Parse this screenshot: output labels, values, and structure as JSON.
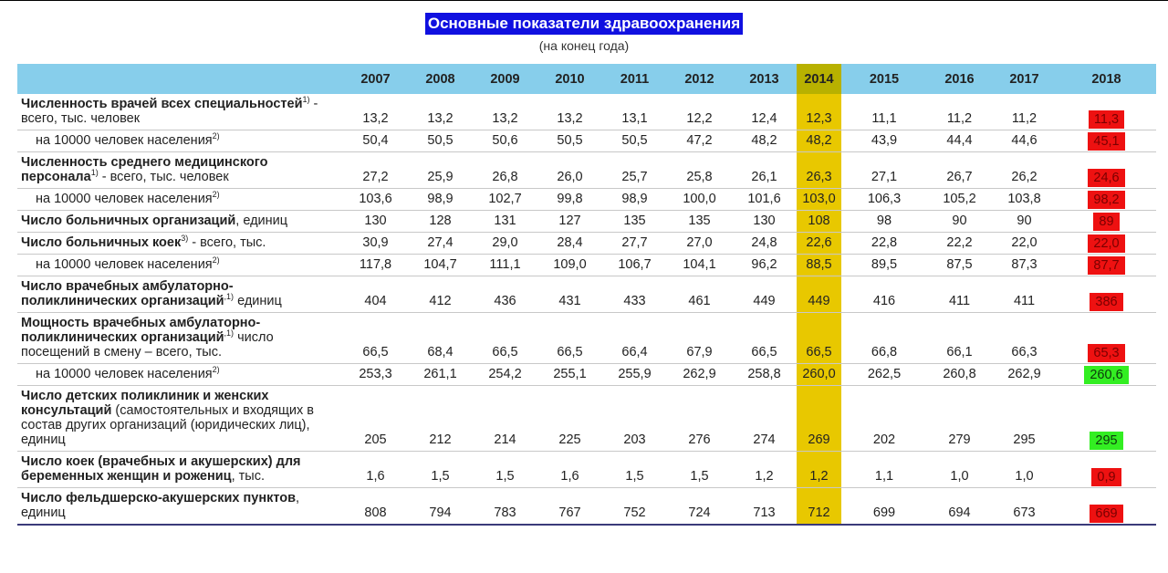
{
  "title": "Основные показатели здравоохранения",
  "subtitle": "(на конец года)",
  "years": [
    "2007",
    "2008",
    "2009",
    "2010",
    "2011",
    "2012",
    "2013",
    "2014",
    "2015",
    "2016",
    "2017",
    "2018"
  ],
  "highlight_year": "2014",
  "colors": {
    "header_bg": "#87ceeb",
    "highlight": "#e8c800",
    "badge_red": "#ee1111",
    "badge_green": "#33ee22",
    "title_bg": "#1010e0"
  },
  "rows": [
    {
      "bold": "Численность врачей всех специальностей",
      "sup": "1)",
      "rest": " - всего, тыс. человек",
      "sub": false,
      "values": [
        "13,2",
        "13,2",
        "13,2",
        "13,2",
        "13,1",
        "12,2",
        "12,4",
        "12,3",
        "11,1",
        "11,2",
        "11,2",
        "11,3"
      ],
      "badge": "red"
    },
    {
      "bold": "",
      "sup": "",
      "rest": "на 10000 человек населения",
      "sup_after": "2)",
      "sub": true,
      "values": [
        "50,4",
        "50,5",
        "50,6",
        "50,5",
        "50,5",
        "47,2",
        "48,2",
        "48,2",
        "43,9",
        "44,4",
        "44,6",
        "45,1"
      ],
      "badge": "red"
    },
    {
      "bold": "Численность среднего медицинского персонала",
      "sup": "1)",
      "rest": " - всего, тыс. человек",
      "sub": false,
      "values": [
        "27,2",
        "25,9",
        "26,8",
        "26,0",
        "25,7",
        "25,8",
        "26,1",
        "26,3",
        "27,1",
        "26,7",
        "26,2",
        "24,6"
      ],
      "badge": "red"
    },
    {
      "bold": "",
      "sup": "",
      "rest": "на 10000 человек населения",
      "sup_after": "2)",
      "sub": true,
      "values": [
        "103,6",
        "98,9",
        "102,7",
        "99,8",
        "98,9",
        "100,0",
        "101,6",
        "103,0",
        "106,3",
        "105,2",
        "103,8",
        "98,2"
      ],
      "badge": "red"
    },
    {
      "bold": "Число больничных организаций",
      "sup": "",
      "rest": ", единиц",
      "sub": false,
      "values": [
        "130",
        "128",
        "131",
        "127",
        "135",
        "135",
        "130",
        "108",
        "98",
        "90",
        "90",
        "89"
      ],
      "badge": "red"
    },
    {
      "bold": "Число больничных коек",
      "sup": "3)",
      "rest": " - всего, тыс.",
      "sub": false,
      "values": [
        "30,9",
        "27,4",
        "29,0",
        "28,4",
        "27,7",
        "27,0",
        "24,8",
        "22,6",
        "22,8",
        "22,2",
        "22,0",
        "22,0"
      ],
      "badge": "red"
    },
    {
      "bold": "",
      "sup": "",
      "rest": "на 10000 человек населения",
      "sup_after": "2)",
      "sub": true,
      "values": [
        "117,8",
        "104,7",
        "111,1",
        "109,0",
        "106,7",
        "104,1",
        "96,2",
        "88,5",
        "89,5",
        "87,5",
        "87,3",
        "87,7"
      ],
      "badge": "red"
    },
    {
      "bold": "Число врачебных амбулаторно-поликлинических организаций",
      "sup": ",1)",
      "rest": " единиц",
      "sub": false,
      "values": [
        "404",
        "412",
        "436",
        "431",
        "433",
        "461",
        "449",
        "449",
        "416",
        "411",
        "411",
        "386"
      ],
      "badge": "red"
    },
    {
      "bold": "Мощность врачебных амбулаторно-поликлинических организаций",
      "sup": ",1)",
      "rest": " число посещений в смену – всего, тыс.",
      "sub": false,
      "values": [
        "66,5",
        "68,4",
        "66,5",
        "66,5",
        "66,4",
        "67,9",
        "66,5",
        "66,5",
        "66,8",
        "66,1",
        "66,3",
        "65,3"
      ],
      "badge": "red"
    },
    {
      "bold": "",
      "sup": "",
      "rest": "на 10000 человек населения",
      "sup_after": "2)",
      "sub": true,
      "values": [
        "253,3",
        "261,1",
        "254,2",
        "255,1",
        "255,9",
        "262,9",
        "258,8",
        "260,0",
        "262,5",
        "260,8",
        "262,9",
        "260,6"
      ],
      "badge": "green"
    },
    {
      "bold": "Число детских поликлиник и женских консультаций",
      "sup": "",
      "rest": " (самостоятельных и входящих в состав других организаций (юридических лиц), единиц",
      "sub": false,
      "values": [
        "205",
        "212",
        "214",
        "225",
        "203",
        "276",
        "274",
        "269",
        "202",
        "279",
        "295",
        "295"
      ],
      "badge": "green"
    },
    {
      "bold": "Число коек (врачебных и акушерских) для беременных женщин и рожениц",
      "sup": "",
      "rest": ", тыс.",
      "sub": false,
      "values": [
        "1,6",
        "1,5",
        "1,5",
        "1,6",
        "1,5",
        "1,5",
        "1,2",
        "1,2",
        "1,1",
        "1,0",
        "1,0",
        "0,9"
      ],
      "badge": "red"
    },
    {
      "bold": "Число фельдшерско-акушерских пунктов",
      "sup": "",
      "rest": ", единиц",
      "sub": false,
      "values": [
        "808",
        "794",
        "783",
        "767",
        "752",
        "724",
        "713",
        "712",
        "699",
        "694",
        "673",
        "669"
      ],
      "badge": "red"
    }
  ]
}
